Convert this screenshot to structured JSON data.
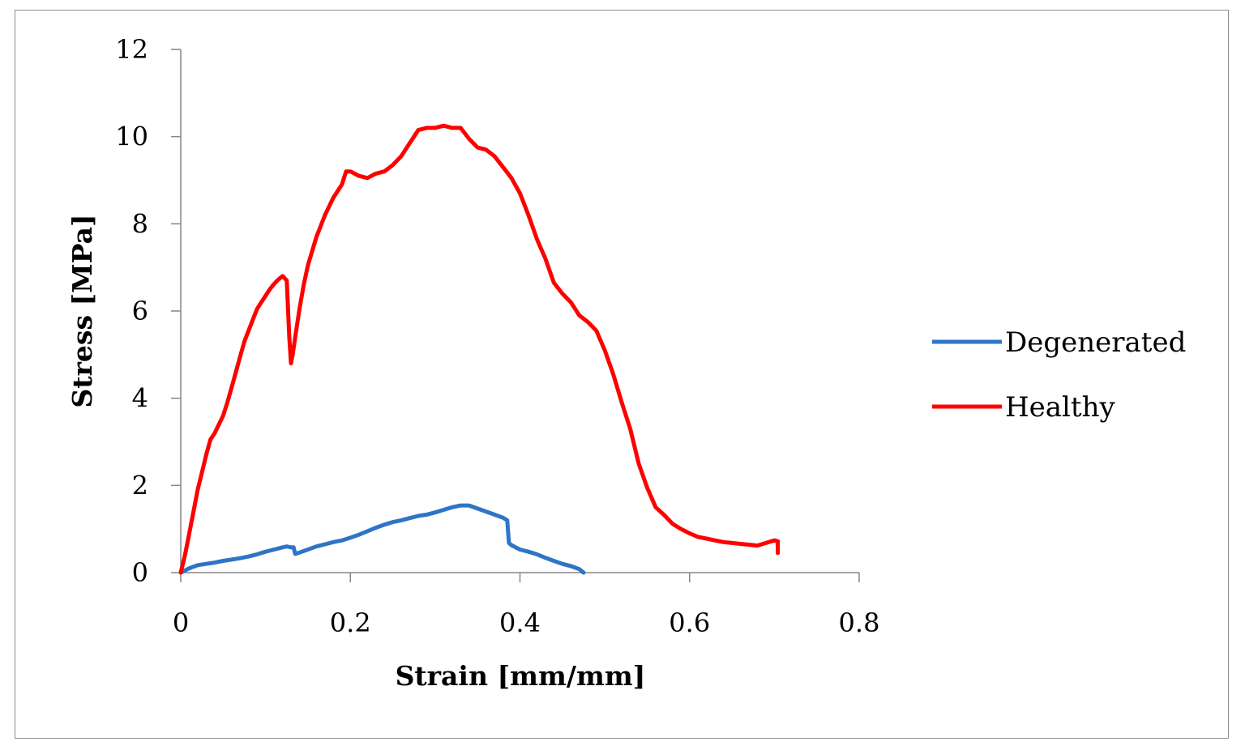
{
  "chart_data": {
    "type": "line",
    "title": "",
    "xlabel": "Strain [mm/mm]",
    "ylabel": "Stress [MPa]",
    "xlim": [
      0,
      0.8
    ],
    "ylim": [
      0,
      12
    ],
    "xticks": [
      0,
      0.2,
      0.4,
      0.6,
      0.8
    ],
    "xtick_labels": [
      "0",
      "0.2",
      "0.4",
      "0.6",
      "0.8"
    ],
    "yticks": [
      0,
      2,
      4,
      6,
      8,
      10,
      12
    ],
    "ytick_labels": [
      "0",
      "2",
      "4",
      "6",
      "8",
      "10",
      "12"
    ],
    "grid": false,
    "legend_position": "right",
    "series": [
      {
        "name": "Degenerated",
        "color": "#2e75c6",
        "x": [
          0,
          0.005,
          0.01,
          0.02,
          0.03,
          0.04,
          0.05,
          0.06,
          0.07,
          0.08,
          0.09,
          0.1,
          0.11,
          0.12,
          0.125,
          0.13,
          0.133,
          0.135,
          0.14,
          0.15,
          0.16,
          0.17,
          0.18,
          0.19,
          0.2,
          0.21,
          0.22,
          0.23,
          0.24,
          0.25,
          0.26,
          0.27,
          0.28,
          0.29,
          0.3,
          0.31,
          0.32,
          0.33,
          0.34,
          0.35,
          0.36,
          0.37,
          0.38,
          0.385,
          0.387,
          0.39,
          0.4,
          0.41,
          0.42,
          0.43,
          0.44,
          0.45,
          0.46,
          0.47,
          0.475
        ],
        "y": [
          0,
          0.05,
          0.1,
          0.17,
          0.2,
          0.23,
          0.27,
          0.3,
          0.33,
          0.37,
          0.42,
          0.48,
          0.53,
          0.58,
          0.6,
          0.58,
          0.58,
          0.43,
          0.46,
          0.53,
          0.6,
          0.65,
          0.7,
          0.74,
          0.8,
          0.87,
          0.95,
          1.03,
          1.1,
          1.16,
          1.2,
          1.25,
          1.3,
          1.33,
          1.38,
          1.44,
          1.5,
          1.54,
          1.54,
          1.47,
          1.4,
          1.33,
          1.26,
          1.2,
          0.68,
          0.63,
          0.53,
          0.48,
          0.42,
          0.34,
          0.27,
          0.2,
          0.15,
          0.08,
          0
        ]
      },
      {
        "name": "Healthy",
        "color": "#ff0000",
        "x": [
          0,
          0.005,
          0.01,
          0.015,
          0.02,
          0.025,
          0.03,
          0.035,
          0.04,
          0.045,
          0.05,
          0.055,
          0.06,
          0.065,
          0.07,
          0.075,
          0.08,
          0.085,
          0.09,
          0.095,
          0.1,
          0.105,
          0.11,
          0.115,
          0.12,
          0.125,
          0.128,
          0.13,
          0.132,
          0.135,
          0.14,
          0.145,
          0.15,
          0.16,
          0.17,
          0.18,
          0.19,
          0.195,
          0.2,
          0.21,
          0.22,
          0.23,
          0.24,
          0.25,
          0.26,
          0.27,
          0.28,
          0.29,
          0.3,
          0.31,
          0.32,
          0.33,
          0.34,
          0.35,
          0.36,
          0.37,
          0.38,
          0.39,
          0.4,
          0.41,
          0.42,
          0.43,
          0.44,
          0.45,
          0.46,
          0.47,
          0.48,
          0.49,
          0.5,
          0.51,
          0.52,
          0.53,
          0.54,
          0.55,
          0.56,
          0.57,
          0.58,
          0.59,
          0.6,
          0.61,
          0.62,
          0.63,
          0.64,
          0.65,
          0.66,
          0.67,
          0.68,
          0.69,
          0.7,
          0.704,
          0.704
        ],
        "y": [
          0,
          0.4,
          0.9,
          1.4,
          1.9,
          2.3,
          2.7,
          3.05,
          3.2,
          3.4,
          3.6,
          3.9,
          4.25,
          4.6,
          4.95,
          5.3,
          5.55,
          5.8,
          6.05,
          6.2,
          6.35,
          6.5,
          6.62,
          6.72,
          6.8,
          6.7,
          5.4,
          4.8,
          5.0,
          5.4,
          6.05,
          6.6,
          7.05,
          7.7,
          8.2,
          8.6,
          8.9,
          9.2,
          9.2,
          9.1,
          9.05,
          9.15,
          9.2,
          9.35,
          9.55,
          9.85,
          10.15,
          10.2,
          10.2,
          10.25,
          10.2,
          10.2,
          9.95,
          9.75,
          9.7,
          9.55,
          9.3,
          9.05,
          8.7,
          8.2,
          7.65,
          7.2,
          6.65,
          6.4,
          6.2,
          5.9,
          5.75,
          5.55,
          5.1,
          4.55,
          3.9,
          3.3,
          2.5,
          1.95,
          1.5,
          1.32,
          1.12,
          1.0,
          0.9,
          0.82,
          0.78,
          0.74,
          0.7,
          0.68,
          0.66,
          0.64,
          0.62,
          0.68,
          0.74,
          0.72,
          0.45
        ]
      }
    ]
  }
}
